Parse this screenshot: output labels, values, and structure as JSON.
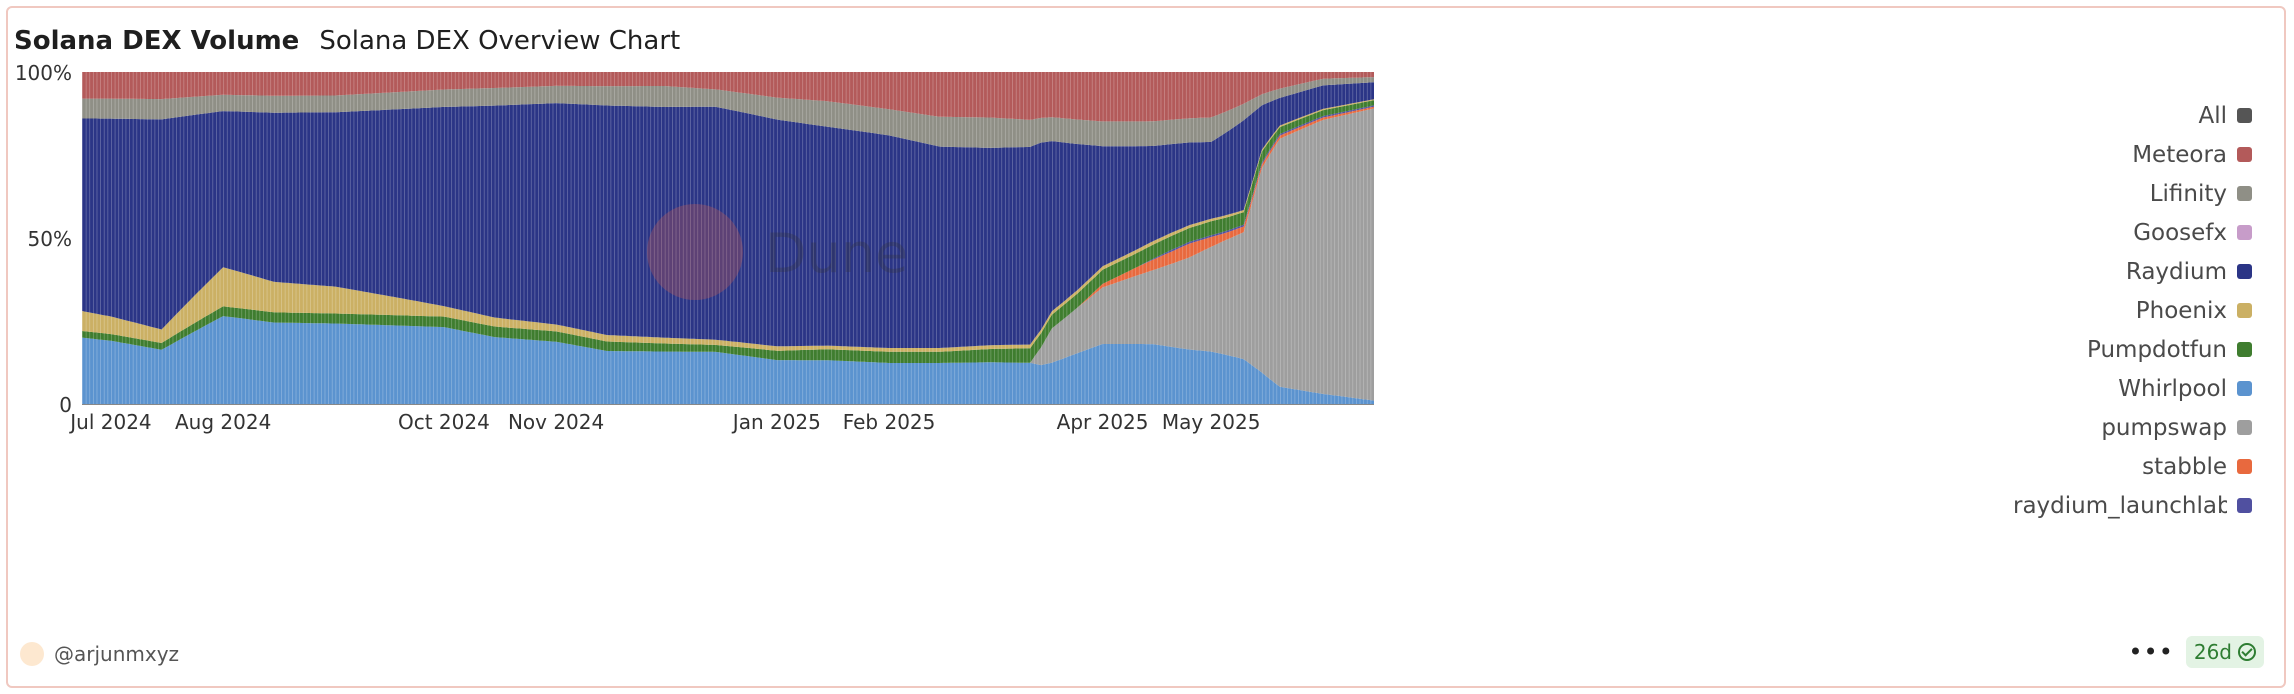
{
  "header": {
    "title": "Solana DEX Volume",
    "subtitle": "Solana DEX Overview Chart"
  },
  "footer": {
    "author": "@arjunmxyz",
    "more": "•••",
    "age": "26d"
  },
  "watermark": "Dune",
  "legend": [
    {
      "label": "All",
      "color": "#555555"
    },
    {
      "label": "Meteora",
      "color": "#b35a5a"
    },
    {
      "label": "Lifinity",
      "color": "#8f8f86"
    },
    {
      "label": "Goosefx",
      "color": "#c79cc9"
    },
    {
      "label": "Raydium",
      "color": "#2b3586"
    },
    {
      "label": "Phoenix",
      "color": "#cbb064"
    },
    {
      "label": "Pumpdotfun",
      "color": "#3f7d2f"
    },
    {
      "label": "Whirlpool",
      "color": "#5b93cf"
    },
    {
      "label": "pumpswap",
      "color": "#9e9e9e"
    },
    {
      "label": "stabble",
      "color": "#e8693e"
    },
    {
      "label": "raydium_launchlab",
      "color": "#5050a0"
    }
  ],
  "chart_data": {
    "type": "area",
    "stacking": "percent",
    "title": "Solana DEX Overview Chart",
    "xlabel": "",
    "ylabel": "",
    "ylim": [
      0,
      100
    ],
    "y_ticks": [
      "0",
      "50%",
      "100%"
    ],
    "x_ticks": [
      "Jul 2024",
      "Aug 2024",
      "Oct 2024",
      "Nov 2024",
      "Jan 2025",
      "Feb 2025",
      "Apr 2025",
      "May 2025"
    ],
    "x_tick_dates": [
      "2024-07-01",
      "2024-08-01",
      "2024-10-01",
      "2024-11-01",
      "2025-01-01",
      "2025-02-01",
      "2025-04-01",
      "2025-05-01"
    ],
    "x_range": [
      "2024-06-23",
      "2025-06-15"
    ],
    "stack_order": [
      "Whirlpool",
      "pumpswap",
      "stabble",
      "raydium_launchlab",
      "Pumpdotfun",
      "Phoenix",
      "Raydium",
      "Lifinity",
      "Meteora"
    ],
    "series": [
      {
        "name": "Whirlpool",
        "dates": [
          "2024-06-23",
          "2024-07-01",
          "2024-07-15",
          "2024-08-01",
          "2024-08-15",
          "2024-09-01",
          "2024-10-01",
          "2024-10-15",
          "2024-11-01",
          "2024-11-15",
          "2024-12-15",
          "2025-01-01",
          "2025-01-15",
          "2025-02-01",
          "2025-02-15",
          "2025-03-01",
          "2025-03-15",
          "2025-04-01",
          "2025-04-15",
          "2025-05-01",
          "2025-05-10",
          "2025-05-20",
          "2025-06-01",
          "2025-06-15"
        ],
        "values": [
          20,
          19,
          16,
          27,
          24,
          24,
          22,
          19,
          18,
          15,
          15,
          12,
          12,
          11,
          11,
          11,
          11,
          17,
          17,
          15,
          12,
          5,
          3,
          1
        ]
      },
      {
        "name": "pumpswap",
        "dates": [
          "2024-06-23",
          "2025-03-12",
          "2025-03-18",
          "2025-04-01",
          "2025-04-15",
          "2025-05-01",
          "2025-05-10",
          "2025-05-15",
          "2025-05-20",
          "2025-06-01",
          "2025-06-15"
        ],
        "values": [
          0,
          0,
          10,
          16,
          21,
          30,
          34,
          55,
          72,
          82,
          86
        ]
      },
      {
        "name": "stabble",
        "dates": [
          "2024-06-23",
          "2025-03-25",
          "2025-04-01",
          "2025-04-15",
          "2025-04-25",
          "2025-05-05",
          "2025-05-15",
          "2025-06-15"
        ],
        "values": [
          0,
          0,
          1,
          3,
          4,
          2,
          1,
          0.5
        ]
      },
      {
        "name": "raydium_launchlab",
        "dates": [
          "2024-06-23",
          "2025-04-10",
          "2025-04-20",
          "2025-05-01",
          "2025-06-15"
        ],
        "values": [
          0,
          0,
          0.5,
          0.5,
          0.4
        ]
      },
      {
        "name": "Pumpdotfun",
        "dates": [
          "2024-06-23",
          "2024-07-15",
          "2024-08-01",
          "2024-09-01",
          "2024-10-01",
          "2024-11-01",
          "2024-12-15",
          "2025-01-15",
          "2025-02-15",
          "2025-03-15",
          "2025-04-01",
          "2025-04-15",
          "2025-05-01",
          "2025-05-15",
          "2025-05-20",
          "2025-06-15"
        ],
        "values": [
          2,
          2,
          3,
          3,
          3,
          3,
          2,
          3,
          3,
          4,
          4,
          4,
          4,
          3,
          2,
          1.5
        ]
      },
      {
        "name": "Phoenix",
        "dates": [
          "2024-06-23",
          "2024-07-15",
          "2024-08-01",
          "2024-08-15",
          "2024-09-01",
          "2024-10-01",
          "2024-11-01",
          "2024-12-15",
          "2025-01-15",
          "2025-02-15",
          "2025-03-15",
          "2025-04-15",
          "2025-05-15",
          "2025-06-15"
        ],
        "values": [
          6,
          4,
          12,
          9,
          8,
          3,
          2,
          1.5,
          1,
          1,
          1,
          1,
          0.5,
          0.3
        ]
      },
      {
        "name": "Raydium",
        "dates": [
          "2024-06-23",
          "2024-07-15",
          "2024-08-01",
          "2024-09-01",
          "2024-10-01",
          "2024-11-01",
          "2024-12-01",
          "2024-12-15",
          "2025-01-01",
          "2025-01-15",
          "2025-02-01",
          "2025-02-15",
          "2025-03-01",
          "2025-03-15",
          "2025-04-01",
          "2025-04-15",
          "2025-05-01",
          "2025-05-10",
          "2025-05-15",
          "2025-05-20",
          "2025-06-01",
          "2025-06-15"
        ],
        "values": [
          58,
          62,
          48,
          52,
          57,
          64,
          66,
          67,
          62,
          60,
          57,
          54,
          52,
          53,
          34,
          27,
          22,
          24,
          12,
          8,
          7,
          5
        ]
      },
      {
        "name": "Lifinity",
        "dates": [
          "2024-06-23",
          "2024-07-15",
          "2024-08-01",
          "2024-09-01",
          "2024-10-01",
          "2024-11-01",
          "2024-12-01",
          "2024-12-15",
          "2025-01-01",
          "2025-01-15",
          "2025-02-01",
          "2025-02-15",
          "2025-03-01",
          "2025-03-15",
          "2025-04-01",
          "2025-04-15",
          "2025-05-01",
          "2025-05-15",
          "2025-06-01",
          "2025-06-15"
        ],
        "values": [
          6,
          6,
          5,
          5,
          5,
          5,
          6,
          5,
          6,
          7,
          7,
          8,
          8,
          7,
          7,
          7,
          7,
          3,
          2,
          1.5
        ]
      },
      {
        "name": "Meteora",
        "dates": [
          "2024-06-23",
          "2024-07-15",
          "2024-08-01",
          "2024-09-01",
          "2024-10-01",
          "2024-11-01",
          "2024-12-01",
          "2024-12-15",
          "2025-01-01",
          "2025-01-15",
          "2025-02-01",
          "2025-02-15",
          "2025-03-01",
          "2025-03-15",
          "2025-04-01",
          "2025-04-15",
          "2025-05-01",
          "2025-05-15",
          "2025-06-01",
          "2025-06-15"
        ],
        "values": [
          8,
          8,
          7,
          7,
          5,
          4,
          4,
          5,
          7,
          8,
          10,
          12,
          12,
          13,
          14,
          14,
          13,
          6,
          2,
          1.5
        ]
      },
      {
        "name": "Goosefx",
        "dates": [
          "2024-06-23",
          "2025-06-15"
        ],
        "values": [
          0,
          0
        ]
      },
      {
        "name": "All",
        "dates": [
          "2024-06-23",
          "2025-06-15"
        ],
        "values": [
          0,
          0
        ]
      }
    ]
  }
}
